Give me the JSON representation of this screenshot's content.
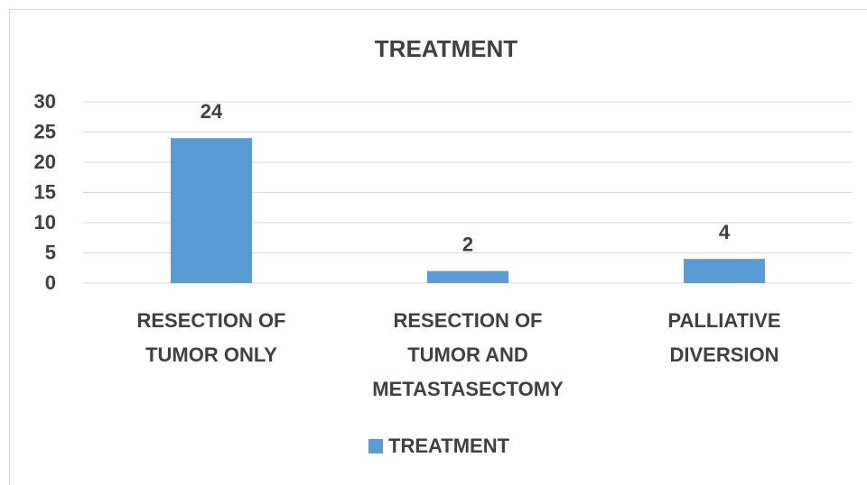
{
  "chart_data": {
    "type": "bar",
    "title": "TREATMENT",
    "categories": [
      "RESECTION OF TUMOR ONLY",
      "RESECTION OF TUMOR AND METASTASECTOMY",
      "PALLIATIVE DIVERSION"
    ],
    "series": [
      {
        "name": "TREATMENT",
        "color": "#5b9bd5",
        "values": [
          24,
          2,
          4
        ]
      }
    ],
    "ylim": [
      0,
      30
    ],
    "yticks": [
      0,
      5,
      10,
      15,
      20,
      25,
      30
    ],
    "grid": true,
    "legend": "bottom"
  }
}
